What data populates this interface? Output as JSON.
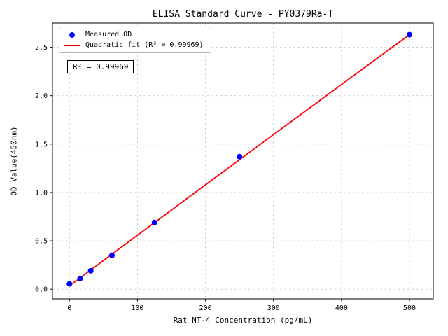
{
  "chart_data": {
    "type": "scatter",
    "title": "ELISA Standard Curve - PY0379Ra-T",
    "xlabel": "Rat NT-4 Concentration (pg/mL)",
    "ylabel": "OD Value(450nm)",
    "xlim": [
      -25,
      535
    ],
    "ylim": [
      -0.1,
      2.75
    ],
    "xticks": [
      0,
      100,
      200,
      300,
      400,
      500
    ],
    "xtick_labels": [
      "0",
      "100",
      "200",
      "300",
      "400",
      "500"
    ],
    "yticks": [
      0.0,
      0.5,
      1.0,
      1.5,
      2.0,
      2.5
    ],
    "ytick_labels": [
      "0.0",
      "0.5",
      "1.0",
      "1.5",
      "2.0",
      "2.5"
    ],
    "grid": true,
    "legend_position": "upper-left",
    "annotation": "R² = 0.99969",
    "colors": {
      "grid": "#c9c9c9",
      "axes": "#000000",
      "scatter": "#0000ff",
      "fit_line": "#ff0000"
    },
    "series": [
      {
        "name": "Measured OD",
        "type": "scatter",
        "color": "#0000ff",
        "x": [
          0,
          15.6,
          31.25,
          62.5,
          125,
          250,
          500
        ],
        "y": [
          0.055,
          0.11,
          0.19,
          0.35,
          0.69,
          1.37,
          2.63
        ]
      },
      {
        "name": "Quadratic fit (R² = 0.99969)",
        "type": "line",
        "color": "#ff0000",
        "fit": "quadratic",
        "coefficients": [
          -1e-07,
          0.00524,
          0.035
        ],
        "x_range": [
          0,
          500
        ]
      }
    ]
  }
}
